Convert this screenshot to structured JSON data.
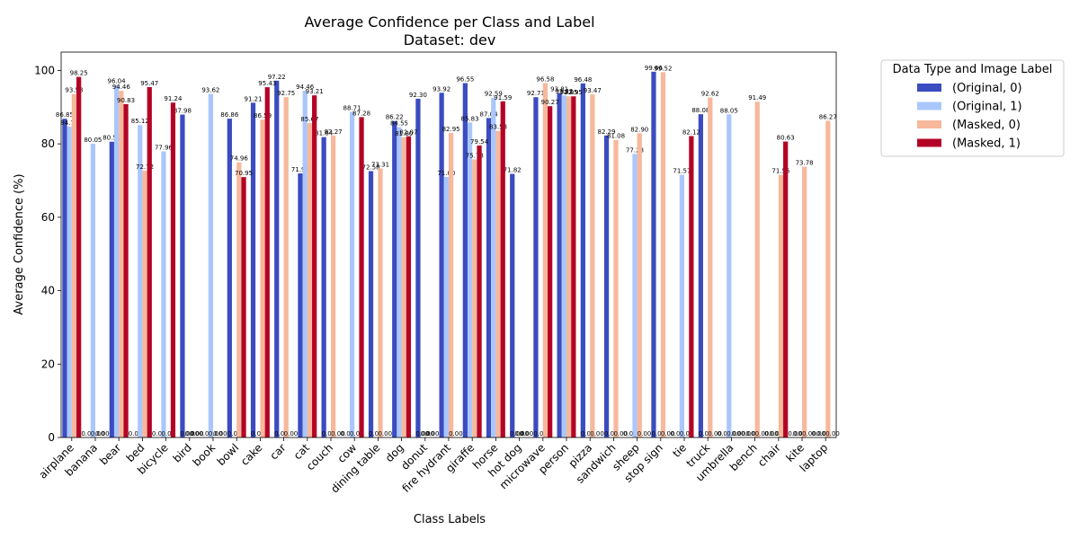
{
  "chart_data": {
    "type": "bar",
    "title": "Average Confidence per Class and Label",
    "subtitle": "Dataset: dev",
    "xlabel": "Class Labels",
    "ylabel": "Average Confidence (%)",
    "ylim": [
      0,
      105
    ],
    "yticks": [
      0,
      20,
      40,
      60,
      80,
      100
    ],
    "grid": false,
    "legend": {
      "title": "Data Type and Image Label",
      "placement": "outside-upper-right"
    },
    "categories": [
      "airplane",
      "banana",
      "bear",
      "bed",
      "bicycle",
      "bird",
      "book",
      "bowl",
      "cake",
      "car",
      "cat",
      "couch",
      "cow",
      "dining table",
      "dog",
      "donut",
      "fire hydrant",
      "giraffe",
      "horse",
      "hot dog",
      "microwave",
      "person",
      "pizza",
      "sandwich",
      "sheep",
      "stop sign",
      "tie",
      "truck",
      "umbrella",
      "bench",
      "chair",
      "kite",
      "laptop"
    ],
    "series": [
      {
        "name": "(Original, 0)",
        "color": "#3b4cc0",
        "values": [
          86.85,
          0.0,
          80.59,
          0.0,
          0.0,
          87.98,
          0.0,
          86.86,
          91.21,
          97.22,
          71.95,
          81.84,
          0.0,
          72.58,
          86.22,
          92.3,
          93.92,
          96.55,
          87.04,
          71.82,
          92.71,
          93.81,
          96.48,
          82.29,
          0.0,
          99.66,
          0.0,
          88.08,
          0.0,
          0.0,
          0.0,
          0.0,
          0.0
        ]
      },
      {
        "name": "(Original, 1)",
        "color": "#aac7fd",
        "values": [
          84.71,
          80.05,
          96.04,
          85.12,
          77.96,
          0.0,
          93.62,
          0.0,
          0.0,
          0.0,
          94.46,
          0.0,
          88.71,
          0.0,
          84.55,
          0.0,
          71.0,
          85.83,
          92.59,
          0.0,
          0.0,
          93.22,
          0.0,
          0.0,
          77.28,
          0.0,
          71.57,
          0.0,
          88.05,
          0.0,
          0.0,
          0.0,
          0.0
        ]
      },
      {
        "name": "(Masked, 0)",
        "color": "#f7b89c",
        "values": [
          93.58,
          0.0,
          94.46,
          72.72,
          0.0,
          0.0,
          0.0,
          74.96,
          86.59,
          92.75,
          85.67,
          82.27,
          0.0,
          73.31,
          81.8,
          0.0,
          82.95,
          75.78,
          83.53,
          0.0,
          96.58,
          92.95,
          93.47,
          81.08,
          82.9,
          99.52,
          0.0,
          92.62,
          0.0,
          91.49,
          71.55,
          73.78,
          86.27
        ]
      },
      {
        "name": "(Masked, 1)",
        "color": "#b40426",
        "values": [
          98.25,
          0.0,
          90.83,
          95.47,
          91.24,
          0.0,
          0.0,
          70.95,
          95.43,
          0.0,
          93.21,
          0.0,
          87.28,
          0.0,
          82.07,
          0.0,
          0.0,
          79.54,
          91.59,
          0.0,
          90.27,
          92.95,
          0.0,
          0.0,
          0.0,
          0.0,
          82.12,
          0.0,
          0.0,
          0.0,
          80.63,
          0.0,
          0.0
        ]
      }
    ]
  }
}
